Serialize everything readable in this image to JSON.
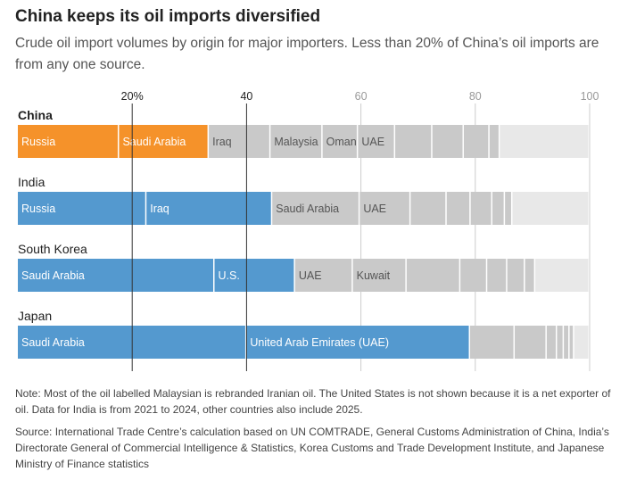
{
  "title": "China keeps its oil imports diversified",
  "subtitle": "Crude oil import volumes by origin for major importers. Less than 20% of China’s oil imports are from any one source.",
  "note": "Note: Most of the oil labelled Malaysian is rebranded Iranian oil. The United States is not shown because it is a net exporter of oil. Data for India is from 2021 to 2024, other countries also include 2025.",
  "source": "Source: International Trade Centre’s calculation based on UN COMTRADE, General Customs Administration of China, India’s Directorate General of Commercial Intelligence & Statistics, Korea Customs and Trade Development Institute, and Japanese Ministry of Finance statistics",
  "colors": {
    "china": "#f5922a",
    "others": "#5499cf",
    "grey": "#c9c9c9",
    "remainder": "#e8e8e8",
    "gridline": "#333333",
    "gridline_light": "#cccccc"
  },
  "chart_data": {
    "type": "bar",
    "orientation": "horizontal-stacked",
    "xlim": [
      0,
      100
    ],
    "ticks": [
      {
        "value": 20,
        "label": "20%",
        "emphasis": true
      },
      {
        "value": 40,
        "label": "40",
        "emphasis": true
      },
      {
        "value": 60,
        "label": "60",
        "emphasis": false
      },
      {
        "value": 80,
        "label": "80",
        "emphasis": false
      },
      {
        "value": 100,
        "label": "100",
        "emphasis": false
      }
    ],
    "series": [
      {
        "name": "China",
        "color": "china",
        "segments": [
          {
            "label": "Russia",
            "value": 17.7,
            "highlight": true
          },
          {
            "label": "Saudi Arabia",
            "value": 15.7,
            "highlight": true
          },
          {
            "label": "Iraq",
            "value": 10.8
          },
          {
            "label": "Malaysia",
            "value": 9.1
          },
          {
            "label": "Oman",
            "value": 6.2
          },
          {
            "label": "UAE",
            "value": 6.5
          },
          {
            "label": "",
            "value": 6.5
          },
          {
            "label": "",
            "value": 5.5
          },
          {
            "label": "",
            "value": 4.5
          },
          {
            "label": "",
            "value": 1.8
          },
          {
            "label": "",
            "value": 15.7,
            "remainder": true
          }
        ]
      },
      {
        "name": "India",
        "color": "others",
        "segments": [
          {
            "label": "Russia",
            "value": 22.5,
            "highlight": true
          },
          {
            "label": "Iraq",
            "value": 22.0,
            "highlight": true
          },
          {
            "label": "Saudi Arabia",
            "value": 15.3
          },
          {
            "label": "UAE",
            "value": 8.9
          },
          {
            "label": "",
            "value": 6.3
          },
          {
            "label": "",
            "value": 4.2
          },
          {
            "label": "",
            "value": 3.8
          },
          {
            "label": "",
            "value": 2.2
          },
          {
            "label": "",
            "value": 1.3
          },
          {
            "label": "",
            "value": 13.5,
            "remainder": true
          }
        ]
      },
      {
        "name": "South Korea",
        "color": "others",
        "segments": [
          {
            "label": "Saudi Arabia",
            "value": 34.4,
            "highlight": true
          },
          {
            "label": "U.S.",
            "value": 14.1,
            "highlight": true
          },
          {
            "label": "UAE",
            "value": 10.1
          },
          {
            "label": "Kuwait",
            "value": 9.4
          },
          {
            "label": "",
            "value": 9.4
          },
          {
            "label": "",
            "value": 4.7
          },
          {
            "label": "",
            "value": 3.5
          },
          {
            "label": "",
            "value": 3.1
          },
          {
            "label": "",
            "value": 1.8
          },
          {
            "label": "",
            "value": 9.5,
            "remainder": true
          }
        ]
      },
      {
        "name": "Japan",
        "color": "others",
        "segments": [
          {
            "label": "Saudi Arabia",
            "value": 40.0,
            "highlight": true
          },
          {
            "label": "United Arab Emirates (UAE)",
            "value": 39.1,
            "highlight": true
          },
          {
            "label": "",
            "value": 7.8
          },
          {
            "label": "",
            "value": 5.6
          },
          {
            "label": "",
            "value": 1.8
          },
          {
            "label": "",
            "value": 1.2
          },
          {
            "label": "",
            "value": 1.0
          },
          {
            "label": "",
            "value": 0.8
          },
          {
            "label": "",
            "value": 2.7,
            "remainder": true
          }
        ]
      }
    ]
  }
}
